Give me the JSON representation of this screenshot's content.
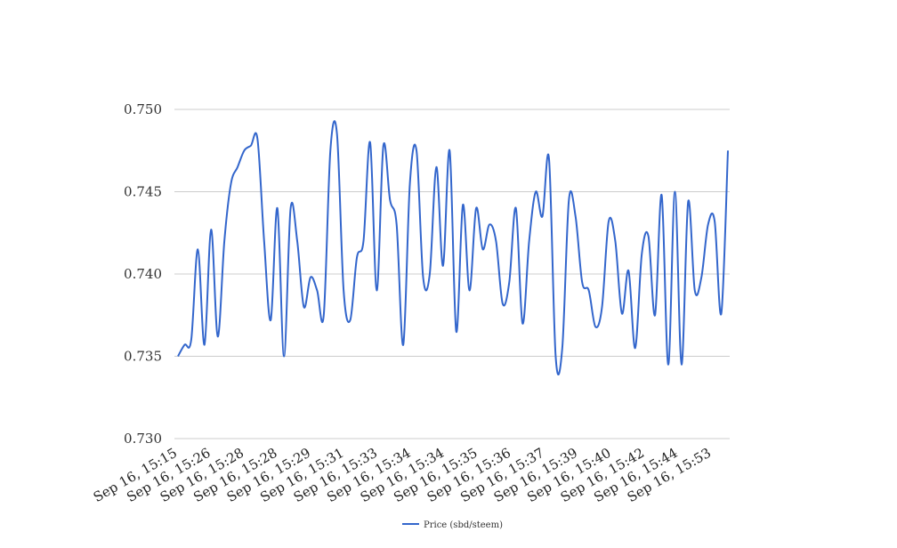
{
  "chart_data": {
    "type": "line",
    "title": "",
    "xlabel": "",
    "ylabel": "",
    "ylim": [
      0.73,
      0.75
    ],
    "yticks": [
      "0.730",
      "0.735",
      "0.740",
      "0.745",
      "0.750"
    ],
    "ytick_values": [
      0.73,
      0.735,
      0.74,
      0.745,
      0.75
    ],
    "xticks": [
      "Sep 16, 15:15",
      "Sep 16, 15:26",
      "Sep 16, 15:28",
      "Sep 16, 15:28",
      "Sep 16, 15:29",
      "Sep 16, 15:31",
      "Sep 16, 15:33",
      "Sep 16, 15:34",
      "Sep 16, 15:34",
      "Sep 16, 15:35",
      "Sep 16, 15:36",
      "Sep 16, 15:37",
      "Sep 16, 15:39",
      "Sep 16, 15:40",
      "Sep 16, 15:42",
      "Sep 16, 15:44",
      "Sep 16, 15:53"
    ],
    "grid": true,
    "legend_position": "bottom",
    "series_color": "#3366cc",
    "series": [
      {
        "name": "Price (sbd/steem)",
        "values": [
          0.735,
          0.7357,
          0.736,
          0.7415,
          0.7357,
          0.7427,
          0.7362,
          0.742,
          0.7455,
          0.7465,
          0.7475,
          0.7478,
          0.7482,
          0.742,
          0.7372,
          0.744,
          0.735,
          0.744,
          0.742,
          0.738,
          0.7398,
          0.739,
          0.7375,
          0.7475,
          0.7485,
          0.739,
          0.7372,
          0.741,
          0.742,
          0.748,
          0.739,
          0.7478,
          0.7445,
          0.743,
          0.7357,
          0.7455,
          0.7475,
          0.7398,
          0.74,
          0.7465,
          0.7405,
          0.7475,
          0.7365,
          0.7442,
          0.739,
          0.744,
          0.7415,
          0.743,
          0.742,
          0.7382,
          0.7395,
          0.744,
          0.737,
          0.742,
          0.745,
          0.7435,
          0.747,
          0.735,
          0.7355,
          0.7445,
          0.7435,
          0.7395,
          0.739,
          0.7368,
          0.738,
          0.7432,
          0.742,
          0.7376,
          0.7402,
          0.7355,
          0.7412,
          0.7423,
          0.7375,
          0.7448,
          0.7345,
          0.745,
          0.7345,
          0.7444,
          0.739,
          0.7398,
          0.743,
          0.7432,
          0.7376,
          0.7475
        ]
      }
    ]
  }
}
